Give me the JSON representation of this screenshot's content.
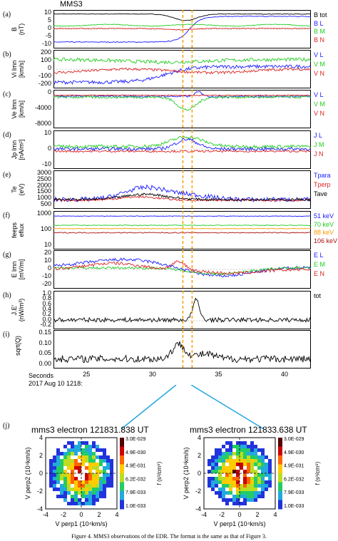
{
  "figure": {
    "spacecraft": "MMS3",
    "caption": "Figure 4. MMS3 observations of the EDR. The format is the same as that of Figure 3.",
    "x_header_line1": "Seconds",
    "x_header_line2": "2017 Aug 10 1218:",
    "x_ticks": [
      "25",
      "30",
      "35",
      "40"
    ],
    "bottom_label": "(j)"
  },
  "chart_data": [
    {
      "type": "line",
      "id": "a",
      "panel_label": "(a)",
      "ylabel": "B\n(nT)",
      "yticks": [
        "10",
        "5",
        "0",
        "-5",
        "-10"
      ],
      "ylim": [
        -12,
        12
      ],
      "series": [
        {
          "name": "B tot",
          "color": "#000000"
        },
        {
          "name": "B L",
          "color": "#1a1aff"
        },
        {
          "name": "B M",
          "color": "#22cc22"
        },
        {
          "name": "B N",
          "color": "#dd2222"
        }
      ]
    },
    {
      "type": "line",
      "id": "b",
      "panel_label": "(b)",
      "ylabel": "Vi lmn\n[km/s]",
      "yticks": [
        "200",
        "100",
        "0",
        "-100",
        "-200"
      ],
      "ylim": [
        -220,
        220
      ],
      "series": [
        {
          "name": "V L",
          "color": "#1a1aff"
        },
        {
          "name": "V M",
          "color": "#22cc22"
        },
        {
          "name": "V N",
          "color": "#dd2222"
        }
      ]
    },
    {
      "type": "line",
      "id": "c",
      "panel_label": "(c)",
      "ylabel": "Ve lmn\n[km/s]",
      "yticks": [
        "0",
        "-4000",
        "-8000"
      ],
      "ylim": [
        -9000,
        1500
      ],
      "series": [
        {
          "name": "V L",
          "color": "#1a1aff"
        },
        {
          "name": "V M",
          "color": "#22cc22"
        },
        {
          "name": "V N",
          "color": "#dd2222"
        }
      ]
    },
    {
      "type": "line",
      "id": "d",
      "panel_label": "(d)",
      "ylabel": "Jp lmn\n[nA/m²]",
      "yticks": [
        "10",
        "0",
        "-10"
      ],
      "ylim": [
        -12,
        12
      ],
      "series": [
        {
          "name": "J L",
          "color": "#1a1aff"
        },
        {
          "name": "J M",
          "color": "#22cc22"
        },
        {
          "name": "J N",
          "color": "#dd2222"
        }
      ]
    },
    {
      "type": "line",
      "id": "e",
      "panel_label": "(e)",
      "ylabel": "Te\n(eV)",
      "yticks": [
        "3000",
        "2500",
        "2000",
        "1500",
        "1000",
        "500"
      ],
      "ylim": [
        400,
        3300
      ],
      "series": [
        {
          "name": "Tpara",
          "color": "#1a1aff"
        },
        {
          "name": "Tperp",
          "color": "#dd2222"
        },
        {
          "name": "Tave",
          "color": "#000000"
        }
      ]
    },
    {
      "type": "line",
      "id": "f",
      "panel_label": "(f)",
      "ylabel": "feeps\neflux",
      "yticks": [
        "1000",
        "100",
        "10"
      ],
      "ylim": [
        5,
        1500
      ],
      "log_scale": true,
      "series": [
        {
          "name": "51 keV",
          "color": "#1a1aff"
        },
        {
          "name": "70 keV",
          "color": "#22cc22"
        },
        {
          "name": "88 keV",
          "color": "#ff9900"
        },
        {
          "name": "106 keV",
          "color": "#aa1111"
        }
      ]
    },
    {
      "type": "line",
      "id": "g",
      "panel_label": "(g)",
      "ylabel": "E lmn\n[mV/m]",
      "yticks": [
        "20",
        "10",
        "0",
        "-10",
        "-20"
      ],
      "ylim": [
        -25,
        25
      ],
      "series": [
        {
          "name": "E L",
          "color": "#1a1aff"
        },
        {
          "name": "E M",
          "color": "#22cc22"
        },
        {
          "name": "E N",
          "color": "#dd2222"
        }
      ]
    },
    {
      "type": "line",
      "id": "h",
      "panel_label": "(h)",
      "ylabel": "J.E'\n(nW/m³)",
      "yticks": [
        "1.0",
        "0.8",
        "0.6",
        "0.4",
        "0.2",
        "0.0",
        "-0.2"
      ],
      "ylim": [
        -0.3,
        1.05
      ],
      "series": [
        {
          "name": "tot",
          "color": "#000000"
        }
      ]
    },
    {
      "type": "line",
      "id": "i",
      "panel_label": "(i)",
      "ylabel": "sqrt(Q)",
      "yticks": [
        "0.15",
        "0.10",
        "0.05",
        "0.00"
      ],
      "ylim": [
        0,
        0.16
      ],
      "series": [
        {
          "name": "",
          "color": "#000000"
        }
      ]
    }
  ],
  "x_range": [
    22.5,
    42
  ],
  "markers": [
    32.3,
    33.0
  ],
  "distributions": [
    {
      "title": "mms3 electron 121831.838 UT",
      "xlabel": "V perp1 (10⁴km/s)",
      "ylabel": "V perp2 (10⁴km/s)",
      "ticks": [
        "-4",
        "-2",
        "0",
        "2",
        "4"
      ],
      "yticks": [
        "4",
        "2",
        "0",
        "-2",
        "-4"
      ],
      "colorbar_label": "f (s³/cm⁶)",
      "colorbar_ticks": [
        "3.0E-029",
        "4.9E-030",
        "4.9E-031",
        "6.2E-032",
        "7.9E-033",
        "1.0E-033"
      ]
    },
    {
      "title": "mms3 electron 121833.638 UT",
      "xlabel": "V perp1 (10⁴km/s)",
      "ylabel": "V perp2 (10⁴km/s)",
      "ticks": [
        "-4",
        "-2",
        "0",
        "2",
        "4"
      ],
      "yticks": [
        "4",
        "2",
        "0",
        "-2",
        "-4"
      ],
      "colorbar_label": "f (s³/cm⁶)",
      "colorbar_ticks": [
        "3.0E-029",
        "4.9E-030",
        "4.9E-031",
        "6.2E-032",
        "7.9E-033",
        "1.0E-033"
      ]
    }
  ]
}
